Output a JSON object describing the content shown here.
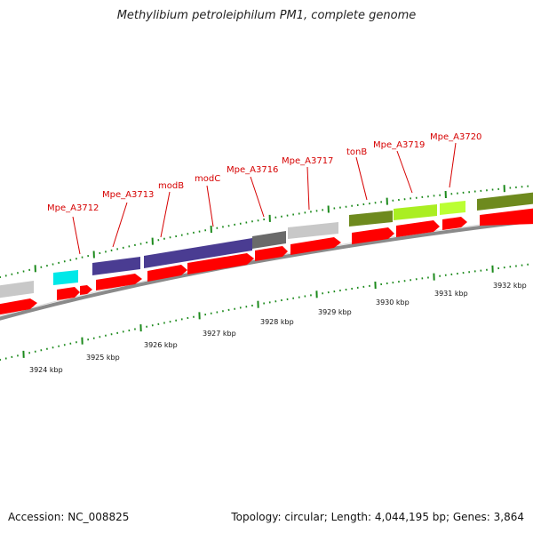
{
  "title": "Methylibium petroleiphilum PM1, complete genome",
  "footer": {
    "accession": "Accession: NC_008825",
    "summary": "Topology: circular; Length: 4,044,195 bp; Genes: 3,864"
  },
  "colors": {
    "cds": "#ff0000",
    "gene_label": "#d60000",
    "tick": "#1c8a1c",
    "backbone": "#8a8a8a",
    "unknown_function": "#c8c8c8",
    "cyan": "#00e8e8",
    "indigo": "#4a3c92",
    "dark_gray": "#6a6a6a",
    "olive": "#6e8a1e",
    "lime": "#aaee22",
    "bright_lime": "#bbff33"
  },
  "gene_labels": [
    {
      "id": "Mpe_A3712",
      "text": "Mpe_A3712"
    },
    {
      "id": "Mpe_A3713",
      "text": "Mpe_A3713"
    },
    {
      "id": "modB",
      "text": "modB"
    },
    {
      "id": "modC",
      "text": "modC"
    },
    {
      "id": "Mpe_A3716",
      "text": "Mpe_A3716"
    },
    {
      "id": "Mpe_A3717",
      "text": "Mpe_A3717"
    },
    {
      "id": "tonB",
      "text": "tonB"
    },
    {
      "id": "Mpe_A3719",
      "text": "Mpe_A3719"
    },
    {
      "id": "Mpe_A3720",
      "text": "Mpe_A3720"
    }
  ],
  "kbp_labels": [
    "3924 kbp",
    "3925 kbp",
    "3926 kbp",
    "3927 kbp",
    "3928 kbp",
    "3929 kbp",
    "3930 kbp",
    "3931 kbp",
    "3932 kbp"
  ]
}
